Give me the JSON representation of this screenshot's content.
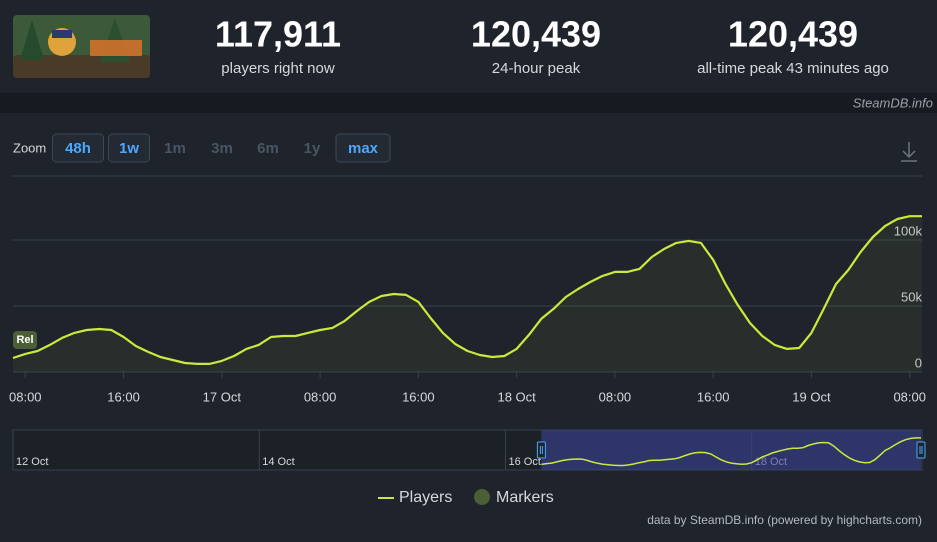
{
  "header": {
    "stats": [
      {
        "value": "117,911",
        "label": "players right now"
      },
      {
        "value": "120,439",
        "label": "24-hour peak"
      },
      {
        "value": "120,439",
        "label": "all-time peak 43 minutes ago"
      }
    ],
    "source": "SteamDB.info"
  },
  "zoom": {
    "label": "Zoom",
    "buttons": [
      "48h",
      "1w",
      "1m",
      "3m",
      "6m",
      "1y",
      "max"
    ]
  },
  "chart_data": {
    "type": "line",
    "x": [
      "16 Oct 07:00",
      "16 Oct 08:00",
      "16 Oct 09:00",
      "16 Oct 10:00",
      "16 Oct 11:00",
      "16 Oct 12:00",
      "16 Oct 13:00",
      "16 Oct 14:00",
      "16 Oct 15:00",
      "16 Oct 16:00",
      "16 Oct 17:00",
      "16 Oct 18:00",
      "16 Oct 19:00",
      "16 Oct 20:00",
      "16 Oct 21:00",
      "16 Oct 22:00",
      "16 Oct 23:00",
      "17 Oct 00:00",
      "17 Oct 01:00",
      "17 Oct 02:00",
      "17 Oct 03:00",
      "17 Oct 04:00",
      "17 Oct 05:00",
      "17 Oct 06:00",
      "17 Oct 07:00",
      "17 Oct 08:00",
      "17 Oct 09:00",
      "17 Oct 10:00",
      "17 Oct 11:00",
      "17 Oct 12:00",
      "17 Oct 13:00",
      "17 Oct 14:00",
      "17 Oct 15:00",
      "17 Oct 16:00",
      "17 Oct 17:00",
      "17 Oct 18:00",
      "17 Oct 19:00",
      "17 Oct 20:00",
      "17 Oct 21:00",
      "17 Oct 22:00",
      "17 Oct 23:00",
      "18 Oct 00:00",
      "18 Oct 01:00",
      "18 Oct 02:00",
      "18 Oct 03:00",
      "18 Oct 04:00",
      "18 Oct 05:00",
      "18 Oct 06:00",
      "18 Oct 07:00",
      "18 Oct 08:00",
      "18 Oct 09:00",
      "18 Oct 10:00",
      "18 Oct 11:00",
      "18 Oct 12:00",
      "18 Oct 13:00",
      "18 Oct 14:00",
      "18 Oct 15:00",
      "18 Oct 16:00",
      "18 Oct 17:00",
      "18 Oct 18:00",
      "18 Oct 19:00",
      "18 Oct 20:00",
      "18 Oct 21:00",
      "18 Oct 22:00",
      "18 Oct 23:00",
      "19 Oct 00:00",
      "19 Oct 01:00",
      "19 Oct 02:00",
      "19 Oct 03:00",
      "19 Oct 04:00",
      "19 Oct 05:00",
      "19 Oct 06:00",
      "19 Oct 07:00",
      "19 Oct 08:00",
      "19 Oct 09:00"
    ],
    "series": [
      {
        "name": "Players",
        "color": "#c9ea3b",
        "values": [
          10600,
          13700,
          15900,
          20500,
          25800,
          29600,
          31800,
          32600,
          31800,
          26500,
          19700,
          15200,
          11400,
          9100,
          6800,
          6100,
          6100,
          8400,
          12100,
          17500,
          20500,
          26500,
          27300,
          27300,
          29600,
          31800,
          33400,
          38700,
          46200,
          53100,
          57600,
          59100,
          58400,
          53100,
          40900,
          29600,
          21200,
          15900,
          12900,
          11400,
          12100,
          17500,
          28100,
          40200,
          47800,
          56800,
          62900,
          68200,
          72800,
          75800,
          75800,
          78100,
          87100,
          93200,
          97800,
          99300,
          97800,
          84900,
          66700,
          50800,
          37100,
          27300,
          20500,
          17500,
          18200,
          29600,
          47800,
          66700,
          77300,
          90900,
          102300,
          110600,
          115900,
          118000,
          118000
        ]
      }
    ],
    "markers": {
      "name": "Markers",
      "color": "#4b5e36",
      "items": [
        {
          "x": "16 Oct 07:00",
          "label": "Rel"
        }
      ]
    },
    "xlim": [
      "16 Oct 07:00",
      "19 Oct 09:00"
    ],
    "xticks": [
      {
        "value": "16 Oct 08:00",
        "label": "08:00"
      },
      {
        "value": "16 Oct 16:00",
        "label": "16:00"
      },
      "17 Oct",
      {
        "value": "17 Oct 08:00",
        "label": "08:00"
      },
      {
        "value": "17 Oct 16:00",
        "label": "16:00"
      },
      "18 Oct",
      {
        "value": "18 Oct 08:00",
        "label": "08:00"
      },
      {
        "value": "18 Oct 16:00",
        "label": "16:00"
      },
      "19 Oct",
      {
        "value": "19 Oct 08:00",
        "label": "08:00"
      }
    ],
    "ylim": [
      0,
      150000
    ],
    "yticks": [
      0,
      {
        "value": 50000,
        "label": "50k"
      },
      {
        "value": 100000,
        "label": "100k"
      }
    ],
    "grid": true,
    "navigator": {
      "xlim": [
        "12 Oct 00:00",
        "19 Oct 09:00"
      ],
      "ticks": [
        "12 Oct",
        "14 Oct",
        "16 Oct",
        "18 Oct"
      ]
    },
    "credit": "data by SteamDB.info (powered by highcharts.com)"
  }
}
